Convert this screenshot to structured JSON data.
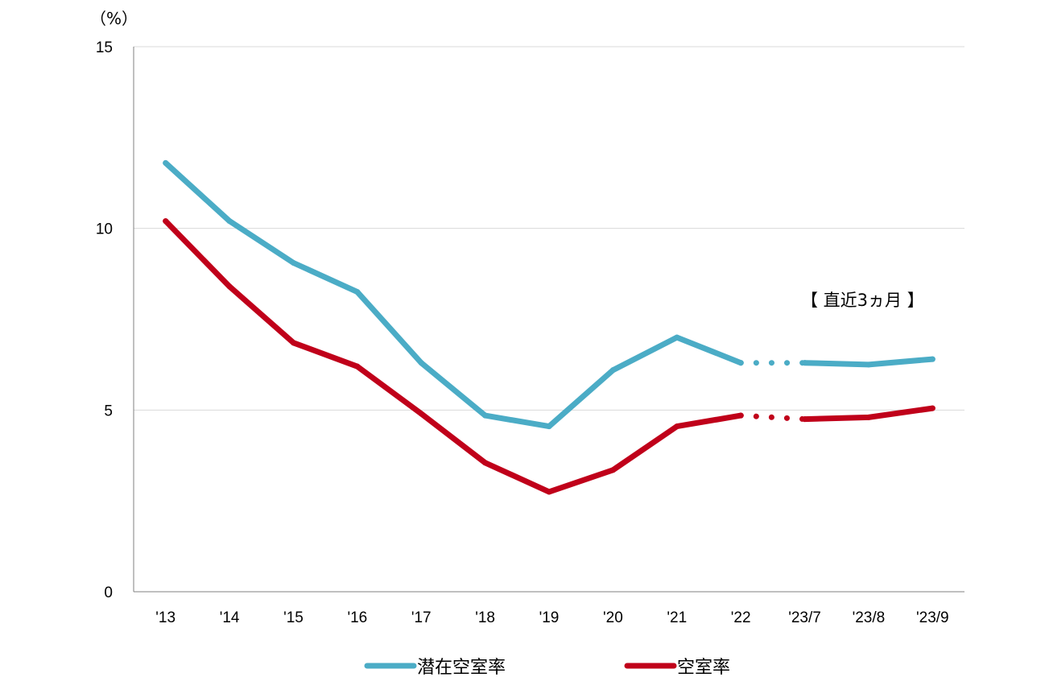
{
  "chart_data": {
    "type": "line",
    "unit_label": "（%）",
    "annotation": "【 直近3ヵ月 】",
    "categories": [
      "'13",
      "'14",
      "'15",
      "'16",
      "'17",
      "'18",
      "'19",
      "'20",
      "'21",
      "'22",
      "'23/7",
      "'23/8",
      "'23/9"
    ],
    "ylim": [
      0,
      15
    ],
    "yticks": [
      "0",
      "5",
      "10",
      "15"
    ],
    "grid": true,
    "legend_position": "bottom",
    "series": [
      {
        "name": "潜在空室率",
        "color": "#4BACC6",
        "values": [
          11.8,
          10.2,
          9.05,
          8.25,
          6.3,
          4.85,
          4.55,
          6.1,
          7.0,
          6.3,
          6.3,
          6.25,
          6.4
        ]
      },
      {
        "name": "空室率",
        "color": "#C0001A",
        "values": [
          10.2,
          8.4,
          6.85,
          6.2,
          4.9,
          3.55,
          2.75,
          3.35,
          4.55,
          4.85,
          4.75,
          4.8,
          5.05
        ]
      }
    ]
  }
}
